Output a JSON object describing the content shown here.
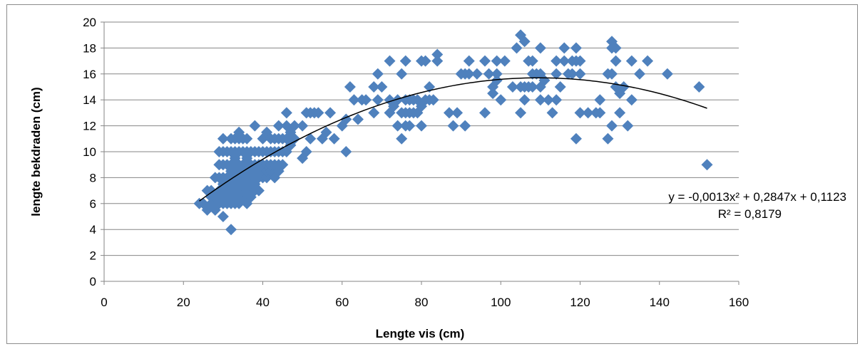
{
  "chart_data": {
    "type": "scatter",
    "xlabel": "Lengte vis (cm)",
    "ylabel": "lengte bekdraden (cm)",
    "xlim": [
      0,
      160
    ],
    "ylim": [
      0,
      20
    ],
    "xticks": [
      0,
      20,
      40,
      60,
      80,
      100,
      120,
      140,
      160
    ],
    "yticks": [
      0,
      2,
      4,
      6,
      8,
      10,
      12,
      14,
      16,
      18,
      20
    ],
    "grid": "horizontal",
    "legend": "none",
    "marker": "diamond",
    "marker_color": "#4f81bd",
    "trendline": {
      "type": "polynomial",
      "coefficients": [
        -0.0013,
        0.2847,
        0.1123
      ],
      "x_range": [
        24,
        152
      ],
      "equation_label": "y = -0,0013x² + 0,2847x + 0,1123",
      "r2_label": "R² = 0,8179",
      "color": "#000000"
    },
    "points": [
      [
        24,
        6
      ],
      [
        25,
        6
      ],
      [
        26,
        5.5
      ],
      [
        26,
        7
      ],
      [
        27,
        6
      ],
      [
        27,
        6.5
      ],
      [
        27,
        7
      ],
      [
        28,
        5.5
      ],
      [
        28,
        6.5
      ],
      [
        28,
        8
      ],
      [
        29,
        6
      ],
      [
        29,
        7
      ],
      [
        29,
        8
      ],
      [
        29,
        9
      ],
      [
        29,
        10
      ],
      [
        30,
        5
      ],
      [
        30,
        6
      ],
      [
        30,
        6.5
      ],
      [
        30,
        7
      ],
      [
        30,
        7.5
      ],
      [
        30,
        8
      ],
      [
        30,
        9
      ],
      [
        30,
        10
      ],
      [
        30,
        11
      ],
      [
        31,
        6
      ],
      [
        31,
        7
      ],
      [
        31,
        8
      ],
      [
        31,
        9
      ],
      [
        31,
        10
      ],
      [
        32,
        4
      ],
      [
        32,
        6
      ],
      [
        32,
        6.5
      ],
      [
        32,
        7
      ],
      [
        32,
        7.5
      ],
      [
        32,
        8
      ],
      [
        32,
        8.5
      ],
      [
        32,
        9
      ],
      [
        32,
        10
      ],
      [
        32,
        11
      ],
      [
        33,
        6
      ],
      [
        33,
        6.5
      ],
      [
        33,
        7
      ],
      [
        33,
        8
      ],
      [
        33,
        9
      ],
      [
        33,
        9.5
      ],
      [
        33,
        10
      ],
      [
        33,
        11
      ],
      [
        34,
        6
      ],
      [
        34,
        6.5
      ],
      [
        34,
        7
      ],
      [
        34,
        7.5
      ],
      [
        34,
        8
      ],
      [
        34,
        8.5
      ],
      [
        34,
        9
      ],
      [
        34,
        10
      ],
      [
        34,
        11
      ],
      [
        34,
        11.5
      ],
      [
        35,
        6.5
      ],
      [
        35,
        7
      ],
      [
        35,
        7.5
      ],
      [
        35,
        8
      ],
      [
        35,
        8.5
      ],
      [
        35,
        9
      ],
      [
        35,
        10
      ],
      [
        35,
        11
      ],
      [
        36,
        6
      ],
      [
        36,
        7
      ],
      [
        36,
        7.5
      ],
      [
        36,
        8
      ],
      [
        36,
        8.5
      ],
      [
        36,
        9
      ],
      [
        36,
        9.5
      ],
      [
        36,
        10
      ],
      [
        36,
        11
      ],
      [
        37,
        6.5
      ],
      [
        37,
        7
      ],
      [
        37,
        7.5
      ],
      [
        37,
        8
      ],
      [
        37,
        9
      ],
      [
        37,
        10
      ],
      [
        38,
        7
      ],
      [
        38,
        7.5
      ],
      [
        38,
        8
      ],
      [
        38,
        8.5
      ],
      [
        38,
        9
      ],
      [
        38,
        10
      ],
      [
        38,
        12
      ],
      [
        39,
        7
      ],
      [
        39,
        8
      ],
      [
        39,
        9
      ],
      [
        39,
        10
      ],
      [
        40,
        8
      ],
      [
        40,
        8.5
      ],
      [
        40,
        9
      ],
      [
        40,
        10
      ],
      [
        40,
        11
      ],
      [
        41,
        8
      ],
      [
        41,
        8.5
      ],
      [
        41,
        9
      ],
      [
        41,
        10
      ],
      [
        41,
        11.5
      ],
      [
        42,
        8.5
      ],
      [
        42,
        9
      ],
      [
        42,
        10
      ],
      [
        42,
        11
      ],
      [
        43,
        8
      ],
      [
        43,
        9
      ],
      [
        43,
        10
      ],
      [
        43,
        11
      ],
      [
        44,
        8.5
      ],
      [
        44,
        9
      ],
      [
        44,
        10
      ],
      [
        44,
        11
      ],
      [
        44,
        12
      ],
      [
        45,
        9
      ],
      [
        45,
        10
      ],
      [
        45,
        11
      ],
      [
        46,
        10
      ],
      [
        46,
        11
      ],
      [
        46,
        12
      ],
      [
        46,
        13
      ],
      [
        47,
        10.5
      ],
      [
        47,
        11.5
      ],
      [
        48,
        11
      ],
      [
        48,
        12
      ],
      [
        50,
        9.5
      ],
      [
        50,
        12
      ],
      [
        51,
        10
      ],
      [
        51,
        13
      ],
      [
        52,
        11
      ],
      [
        52,
        13
      ],
      [
        53,
        13
      ],
      [
        54,
        13
      ],
      [
        55,
        11
      ],
      [
        56,
        11.5
      ],
      [
        57,
        13
      ],
      [
        58,
        11
      ],
      [
        60,
        12
      ],
      [
        61,
        10
      ],
      [
        61,
        12.5
      ],
      [
        62,
        15
      ],
      [
        63,
        14
      ],
      [
        64,
        12.5
      ],
      [
        65,
        14
      ],
      [
        66,
        14
      ],
      [
        68,
        13
      ],
      [
        68,
        15
      ],
      [
        69,
        14
      ],
      [
        69,
        16
      ],
      [
        70,
        15
      ],
      [
        72,
        13
      ],
      [
        72,
        14
      ],
      [
        72,
        17
      ],
      [
        73,
        13.5
      ],
      [
        74,
        12
      ],
      [
        74,
        14
      ],
      [
        75,
        11
      ],
      [
        75,
        13
      ],
      [
        75,
        16
      ],
      [
        76,
        12
      ],
      [
        76,
        13
      ],
      [
        76,
        14
      ],
      [
        76,
        17
      ],
      [
        77,
        12
      ],
      [
        77,
        13
      ],
      [
        77,
        14
      ],
      [
        78,
        13
      ],
      [
        78,
        14
      ],
      [
        79,
        13
      ],
      [
        79,
        14
      ],
      [
        80,
        12
      ],
      [
        80,
        13.5
      ],
      [
        80,
        17
      ],
      [
        81,
        14
      ],
      [
        81,
        17
      ],
      [
        82,
        14
      ],
      [
        82,
        15
      ],
      [
        83,
        14
      ],
      [
        84,
        17
      ],
      [
        84,
        17.5
      ],
      [
        87,
        13
      ],
      [
        88,
        12
      ],
      [
        89,
        13
      ],
      [
        90,
        16
      ],
      [
        91,
        12
      ],
      [
        91,
        16
      ],
      [
        92,
        16
      ],
      [
        92,
        17
      ],
      [
        94,
        16
      ],
      [
        96,
        13
      ],
      [
        96,
        17
      ],
      [
        97,
        16
      ],
      [
        98,
        14.5
      ],
      [
        98,
        15
      ],
      [
        99,
        15.5
      ],
      [
        99,
        16
      ],
      [
        99,
        17
      ],
      [
        100,
        14
      ],
      [
        101,
        17
      ],
      [
        103,
        15
      ],
      [
        104,
        18
      ],
      [
        105,
        13
      ],
      [
        105,
        15
      ],
      [
        105,
        19
      ],
      [
        106,
        14
      ],
      [
        106,
        15
      ],
      [
        106,
        18.5
      ],
      [
        107,
        15
      ],
      [
        107,
        17
      ],
      [
        108,
        15
      ],
      [
        108,
        16
      ],
      [
        108,
        17
      ],
      [
        109,
        16
      ],
      [
        110,
        14
      ],
      [
        110,
        15
      ],
      [
        110,
        16
      ],
      [
        110,
        18
      ],
      [
        111,
        15.5
      ],
      [
        112,
        14
      ],
      [
        113,
        13
      ],
      [
        114,
        14
      ],
      [
        114,
        16
      ],
      [
        114,
        17
      ],
      [
        115,
        15
      ],
      [
        116,
        17
      ],
      [
        116,
        18
      ],
      [
        117,
        16
      ],
      [
        118,
        16
      ],
      [
        118,
        17
      ],
      [
        119,
        11
      ],
      [
        119,
        17
      ],
      [
        119,
        18
      ],
      [
        120,
        13
      ],
      [
        120,
        16
      ],
      [
        120,
        17
      ],
      [
        122,
        13
      ],
      [
        124,
        13
      ],
      [
        125,
        13
      ],
      [
        125,
        14
      ],
      [
        127,
        11
      ],
      [
        127,
        16
      ],
      [
        128,
        12
      ],
      [
        128,
        16
      ],
      [
        128,
        18
      ],
      [
        128,
        18.5
      ],
      [
        129,
        15
      ],
      [
        129,
        17
      ],
      [
        129,
        18
      ],
      [
        130,
        13
      ],
      [
        130,
        14.5
      ],
      [
        131,
        15
      ],
      [
        132,
        12
      ],
      [
        133,
        14
      ],
      [
        133,
        17
      ],
      [
        135,
        16
      ],
      [
        137,
        17
      ],
      [
        142,
        16
      ],
      [
        150,
        15
      ],
      [
        152,
        9
      ]
    ]
  }
}
